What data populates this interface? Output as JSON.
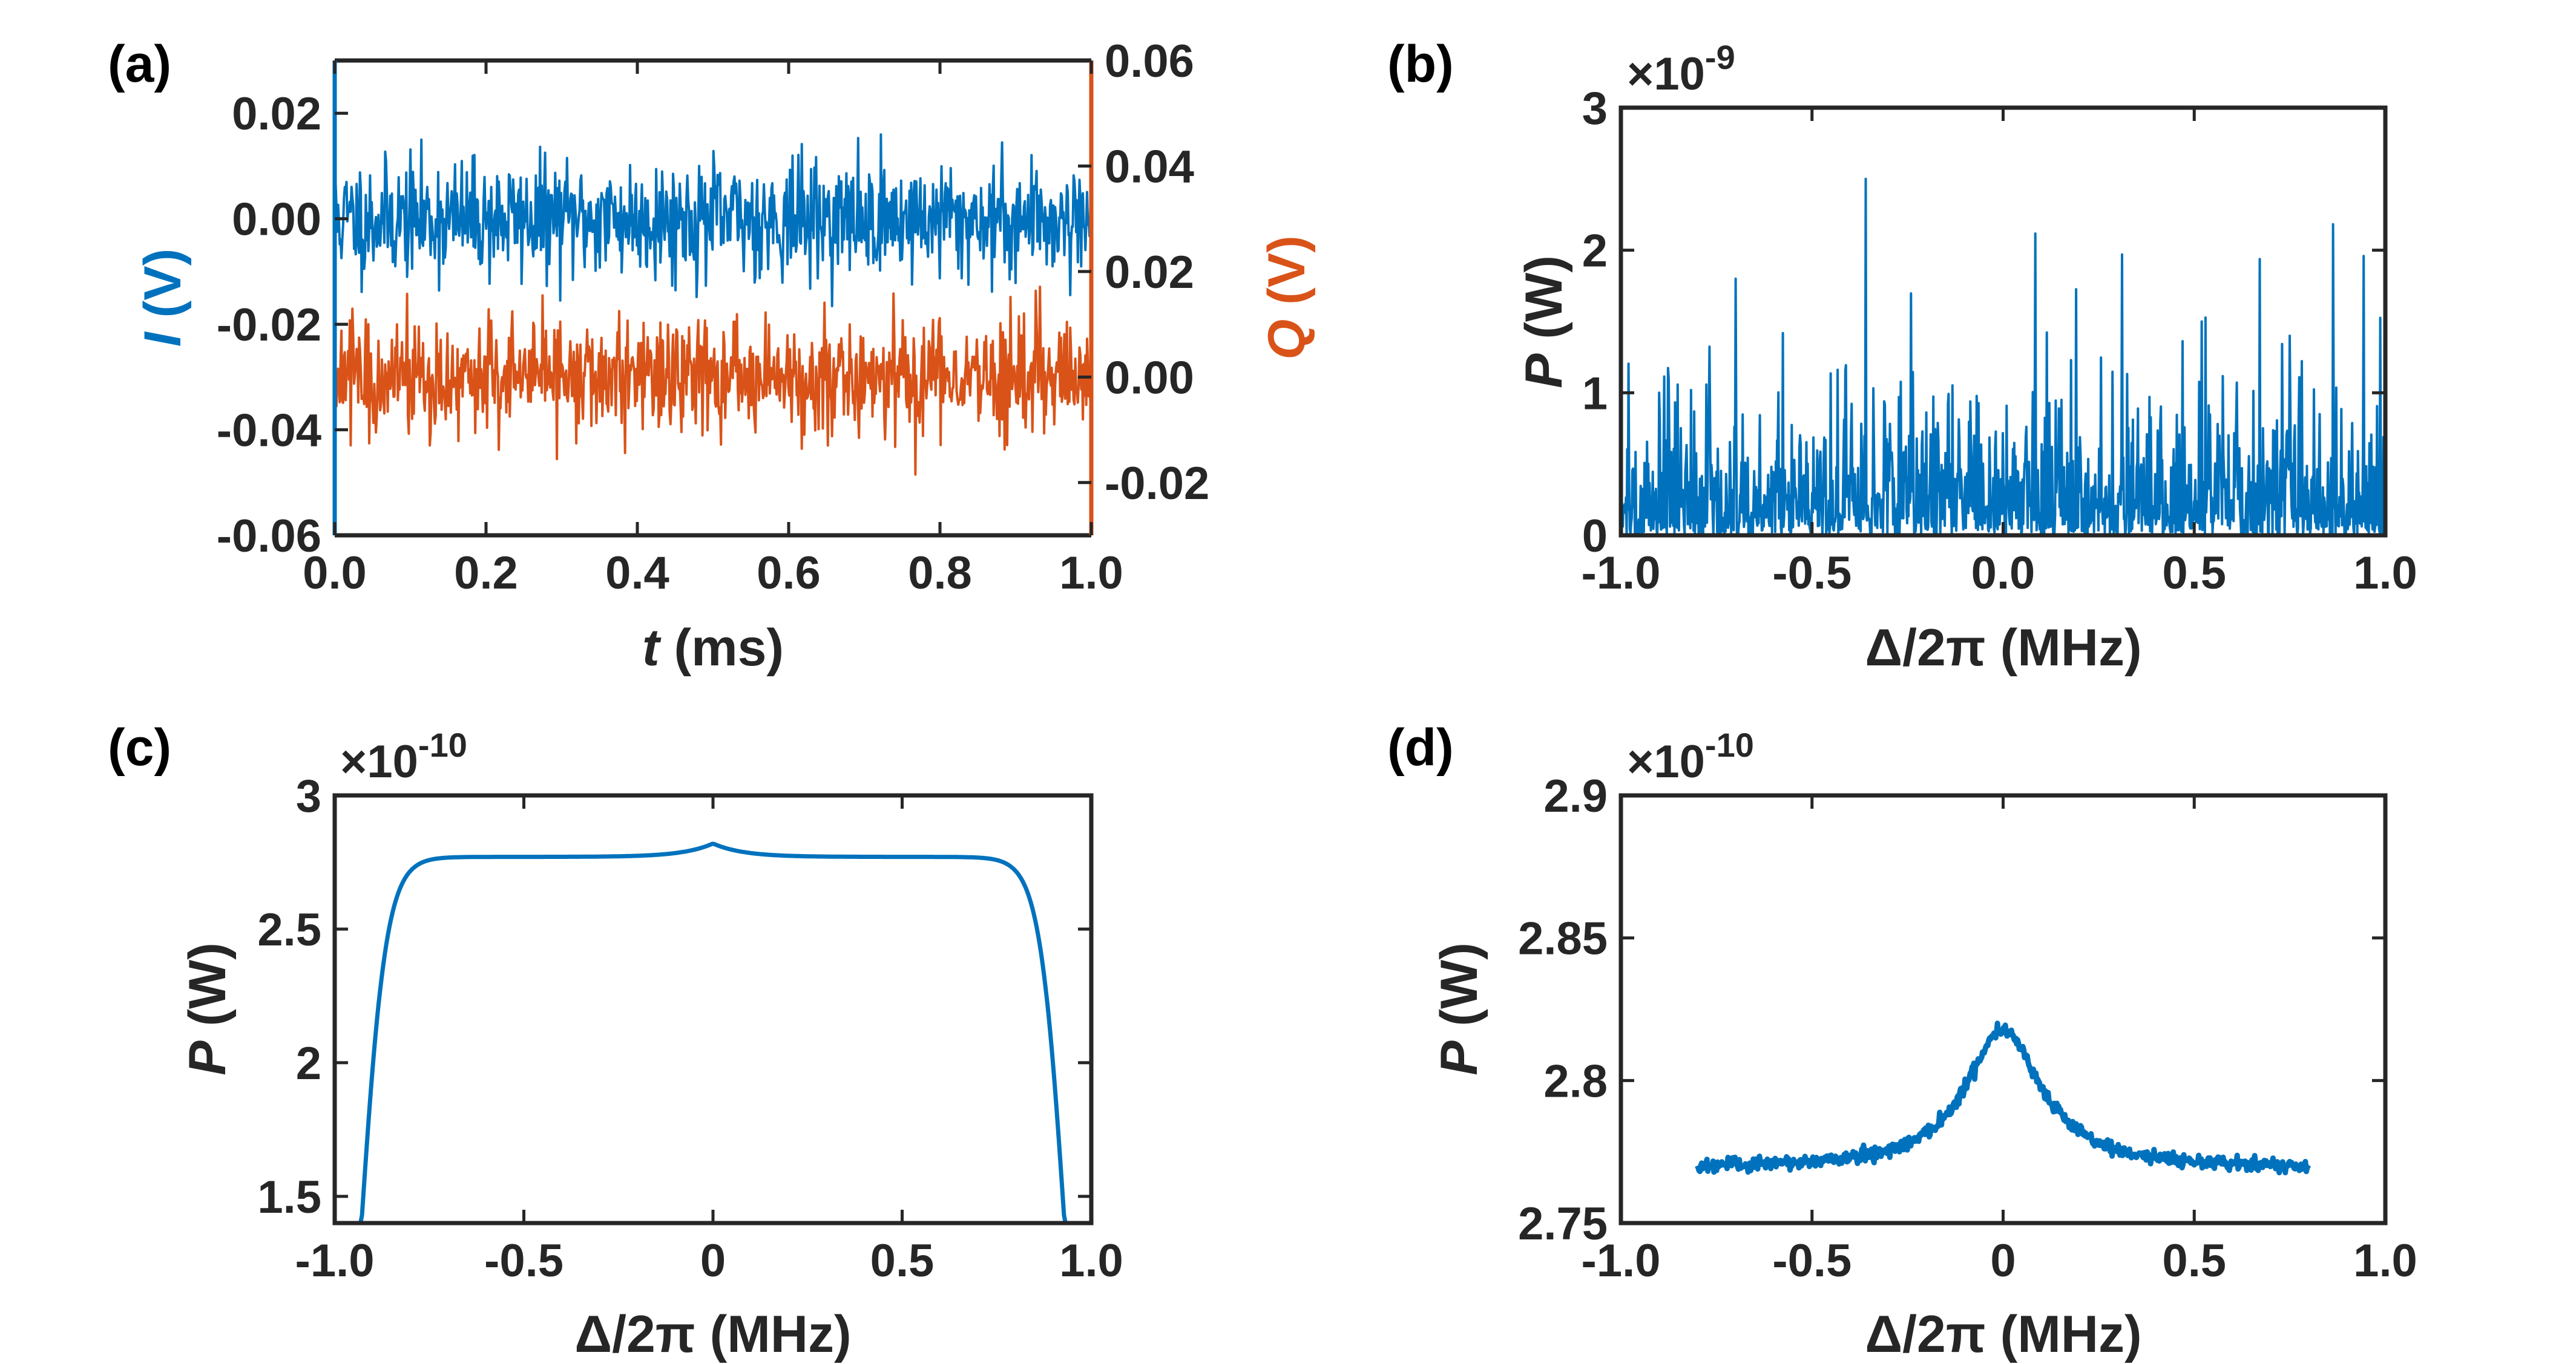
{
  "chart_data": [
    {
      "panel_label": "(a)",
      "type": "line",
      "title": "",
      "xlabel_var": "t",
      "xlabel_unit": " (ms)",
      "ylabel_left_var": "I",
      "ylabel_left_unit": " (V)",
      "ylabel_right_var": "Q",
      "ylabel_right_unit": " (V)",
      "xlim": [
        0,
        1
      ],
      "ylim_left": [
        -0.06,
        0.03
      ],
      "ylim_right": [
        -0.03,
        0.06
      ],
      "xticks": [
        0,
        0.2,
        0.4,
        0.6,
        0.8,
        1.0
      ],
      "xtick_labels": [
        "0.0",
        "0.2",
        "0.4",
        "0.6",
        "0.8",
        "1.0"
      ],
      "yticks_left": [
        -0.06,
        -0.04,
        -0.02,
        0.0,
        0.02
      ],
      "ytick_labels_left": [
        "-0.06",
        "-0.04",
        "-0.02",
        "0.00",
        "0.02"
      ],
      "yticks_right": [
        -0.02,
        0.0,
        0.02,
        0.04,
        0.06
      ],
      "ytick_labels_right": [
        "-0.02",
        "0.00",
        "0.02",
        "0.04",
        "0.06"
      ],
      "series": [
        {
          "name": "I",
          "axis": "left",
          "color": "#0072BD",
          "mean": 0.0,
          "noise": 0.0055,
          "points": 900
        },
        {
          "name": "Q",
          "axis": "right",
          "color": "#D95319",
          "mean": 0.0,
          "noise": 0.0055,
          "points": 900
        }
      ]
    },
    {
      "panel_label": "(b)",
      "type": "line",
      "xlabel": "Δ/2π (MHz)",
      "ylabel_var": "P",
      "ylabel_unit": " (W)",
      "exponent_prefix": "×10",
      "exponent": "-9",
      "xlim": [
        -1,
        1
      ],
      "ylim": [
        0,
        3
      ],
      "xticks": [
        -1,
        -0.5,
        0,
        0.5,
        1
      ],
      "xtick_labels": [
        "-1.0",
        "-0.5",
        "0.0",
        "0.5",
        "1.0"
      ],
      "yticks": [
        0,
        1,
        2,
        3
      ],
      "ytick_labels": [
        "0",
        "1",
        "2",
        "3"
      ],
      "series": [
        {
          "name": "P",
          "color": "#0072BD",
          "mean": 0.28,
          "points": 1200,
          "peaks": [
            [
              -0.36,
              2.5
            ],
            [
              -0.7,
              1.8
            ],
            [
              -0.9,
              1.0
            ],
            [
              0.52,
              1.5
            ],
            [
              0.75,
              1.4
            ]
          ]
        }
      ]
    },
    {
      "panel_label": "(c)",
      "type": "line",
      "xlabel": "Δ/2π (MHz)",
      "ylabel_var": "P",
      "ylabel_unit": " (W)",
      "exponent_prefix": "×10",
      "exponent": "-10",
      "xlim": [
        -1,
        1
      ],
      "ylim": [
        1.4,
        3.0
      ],
      "xticks": [
        -1,
        -0.5,
        0,
        0.5,
        1
      ],
      "xtick_labels": [
        "-1.0",
        "-0.5",
        "0",
        "0.5",
        "1.0"
      ],
      "yticks": [
        1.5,
        2,
        2.5,
        3
      ],
      "ytick_labels": [
        "1.5",
        "2",
        "2.5",
        "3"
      ],
      "series": [
        {
          "name": "P",
          "color": "#0072BD",
          "plateau": 2.77,
          "peak_height": 0.05,
          "peak_width": 0.08,
          "edge": 0.93,
          "edge_width": 0.033
        }
      ]
    },
    {
      "panel_label": "(d)",
      "type": "line",
      "xlabel": "Δ/2π (MHz)",
      "ylabel_var": "P",
      "ylabel_unit": " (W)",
      "exponent_prefix": "×10",
      "exponent": "-10",
      "xlim": [
        -1,
        1
      ],
      "ylim": [
        2.75,
        2.9
      ],
      "xticks": [
        -1,
        -0.5,
        0,
        0.5,
        1
      ],
      "xtick_labels": [
        "-1.0",
        "-0.5",
        "0",
        "0.5",
        "1.0"
      ],
      "yticks": [
        2.75,
        2.8,
        2.85,
        2.9
      ],
      "ytick_labels": [
        "2.75",
        "2.8",
        "2.85",
        "2.9"
      ],
      "series": [
        {
          "name": "P",
          "color": "#0072BD",
          "range": [
            -0.8,
            0.8
          ],
          "baseline": 2.769,
          "peak_height": 0.049,
          "peak_width": 0.12,
          "points": 700
        }
      ]
    }
  ]
}
